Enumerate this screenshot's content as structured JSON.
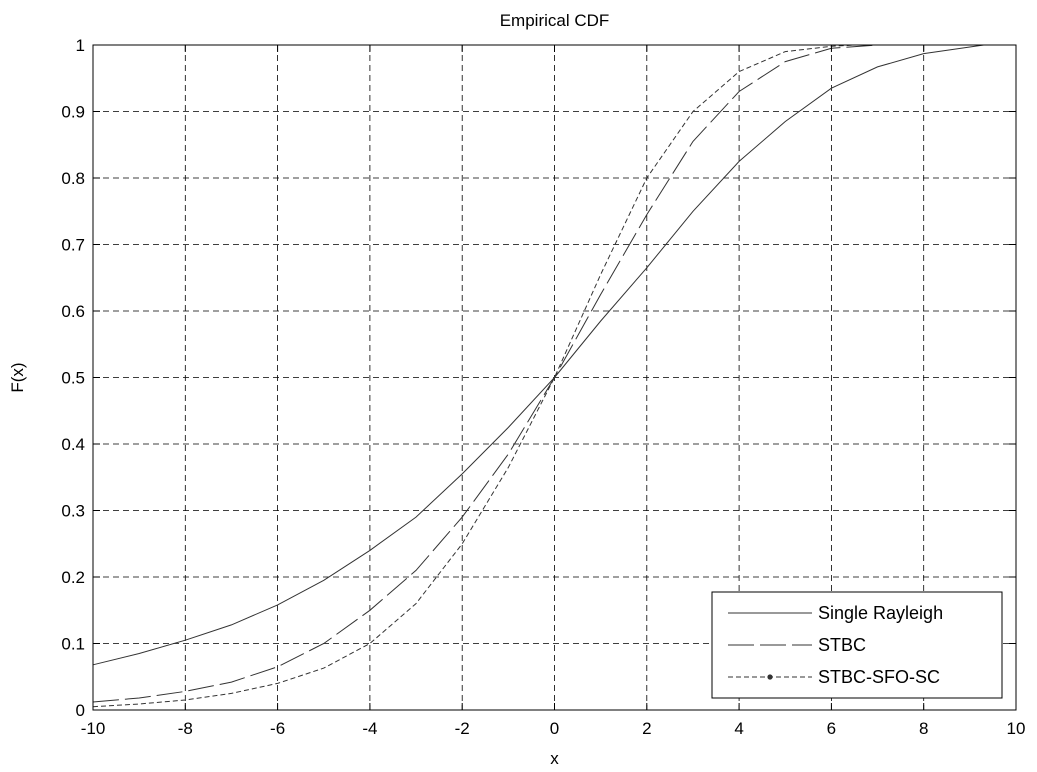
{
  "chart_data": {
    "type": "line",
    "title": "Empirical CDF",
    "xlabel": "x",
    "ylabel": "F(x)",
    "xlim": [
      -10,
      10
    ],
    "ylim": [
      0,
      1
    ],
    "xticks": [
      -10,
      -8,
      -6,
      -4,
      -2,
      0,
      2,
      4,
      6,
      8,
      10
    ],
    "yticks": [
      0,
      0.1,
      0.2,
      0.3,
      0.4,
      0.5,
      0.6,
      0.7,
      0.8,
      0.9,
      1
    ],
    "grid": true,
    "legend_position": "bottom-right",
    "series": [
      {
        "name": "Single Rayleigh",
        "style": "solid",
        "x": [
          -10,
          -9,
          -8,
          -7,
          -6,
          -5,
          -4,
          -3,
          -2,
          -1,
          0,
          1,
          2,
          3,
          4,
          5,
          6,
          7,
          8,
          9,
          9.3
        ],
        "y": [
          0.068,
          0.085,
          0.105,
          0.128,
          0.158,
          0.195,
          0.24,
          0.29,
          0.355,
          0.425,
          0.5,
          0.585,
          0.665,
          0.75,
          0.825,
          0.885,
          0.935,
          0.967,
          0.987,
          0.997,
          1.0
        ]
      },
      {
        "name": "STBC",
        "style": "longdash",
        "x": [
          -10,
          -9,
          -8,
          -7,
          -6,
          -5,
          -4,
          -3,
          -2,
          -1,
          0,
          1,
          2,
          3,
          4,
          5,
          6,
          7
        ],
        "y": [
          0.012,
          0.018,
          0.028,
          0.042,
          0.065,
          0.1,
          0.15,
          0.21,
          0.29,
          0.385,
          0.5,
          0.625,
          0.745,
          0.855,
          0.93,
          0.975,
          0.995,
          1.0
        ]
      },
      {
        "name": "STBC-SFO-SC",
        "style": "shortdash-marker",
        "x": [
          -10,
          -9,
          -8,
          -7,
          -6,
          -5,
          -4,
          -3,
          -2,
          -1,
          0,
          1,
          2,
          3,
          4,
          5,
          6,
          6.5
        ],
        "y": [
          0.005,
          0.009,
          0.015,
          0.025,
          0.04,
          0.063,
          0.1,
          0.16,
          0.25,
          0.365,
          0.5,
          0.655,
          0.8,
          0.9,
          0.96,
          0.99,
          0.998,
          1.0
        ]
      }
    ]
  }
}
